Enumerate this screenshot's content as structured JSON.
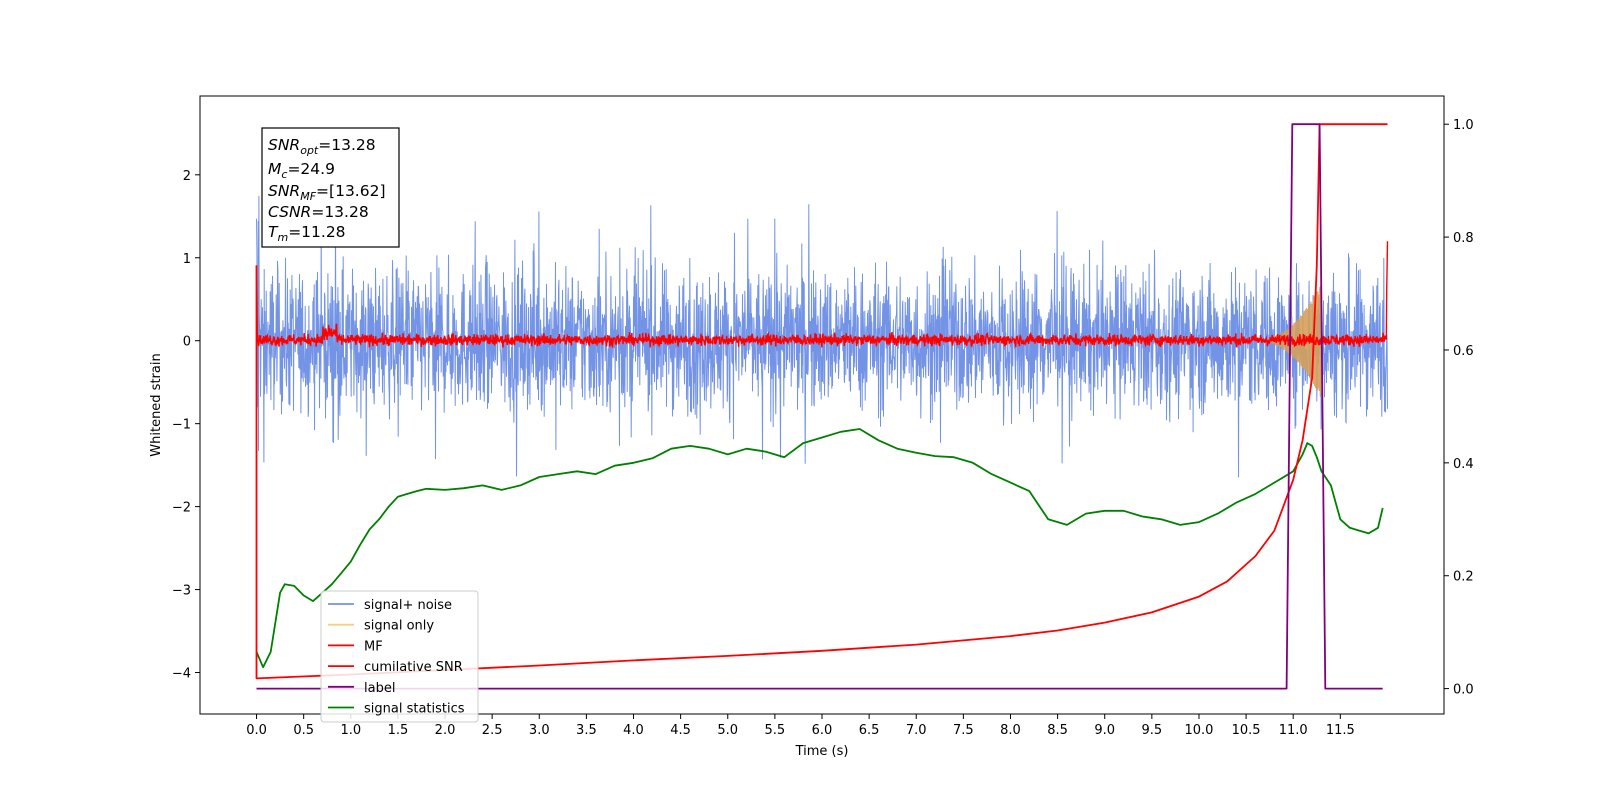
{
  "chart_data": {
    "type": "line",
    "xlabel": "Time (s)",
    "ylabel": "Whitened strain",
    "ylabel_right": "",
    "xlim": [
      -0.6,
      12.6
    ],
    "ylim": [
      -4.5,
      2.95
    ],
    "ylim_right": [
      -0.045,
      1.05
    ],
    "x_ticks": [
      "0.0",
      "0.5",
      "1.0",
      "1.5",
      "2.0",
      "2.5",
      "3.0",
      "3.5",
      "4.0",
      "4.5",
      "5.0",
      "5.5",
      "6.0",
      "6.5",
      "7.0",
      "7.5",
      "8.0",
      "8.5",
      "9.0",
      "9.5",
      "10.0",
      "10.5",
      "11.0",
      "11.5"
    ],
    "y_ticks_left": [
      "−4",
      "−3",
      "−2",
      "−1",
      "0",
      "1",
      "2"
    ],
    "y_ticks_right": [
      "0.0",
      "0.2",
      "0.4",
      "0.6",
      "0.8",
      "1.0"
    ],
    "annotation": {
      "lines": [
        {
          "var": "SNR",
          "sub": "opt",
          "value": "=13.28"
        },
        {
          "var": "M",
          "sub": "c",
          "value": "=24.9"
        },
        {
          "var": "SNR",
          "sub": "MF",
          "value": "=[13.62]"
        },
        {
          "var": "CSNR",
          "sub": "",
          "value": "=13.28"
        },
        {
          "var": "T",
          "sub": "m",
          "value": "=11.28"
        }
      ]
    },
    "legend": {
      "placement": "lower-left",
      "entries": [
        {
          "label": "signal+ noise",
          "color": "#7293e6"
        },
        {
          "label": "signal only",
          "color": "#f7cf82"
        },
        {
          "label": "MF",
          "color": "#ff0000"
        },
        {
          "label": "cumilative SNR",
          "color": "#ff0000"
        },
        {
          "label": "label",
          "color": "#800080"
        },
        {
          "label": "signal statistics",
          "color": "#008000"
        }
      ]
    },
    "series": [
      {
        "name": "signal+ noise",
        "axis": "left",
        "color": "#7293e6",
        "style": "noise",
        "x_range": [
          0,
          12.0
        ],
        "amplitude": 0.42,
        "spikes": 1.7
      },
      {
        "name": "signal only",
        "axis": "left",
        "color": "#d4a05a",
        "style": "chirp",
        "x_range": [
          10.6,
          11.3
        ],
        "peak": 0.7
      },
      {
        "name": "MF",
        "axis": "left",
        "color": "#ff0000",
        "style": "mf",
        "x_range": [
          0,
          12.0
        ],
        "amplitude": 0.07
      },
      {
        "name": "cumilative SNR",
        "axis": "right",
        "color": "#ff0000",
        "x": [
          0.0,
          0.0,
          1.0,
          2.0,
          3.0,
          4.0,
          5.0,
          6.0,
          7.0,
          8.0,
          8.5,
          9.0,
          9.5,
          10.0,
          10.3,
          10.6,
          10.8,
          11.0,
          11.1,
          11.2,
          11.25,
          11.28,
          11.5,
          12.0
        ],
        "y": [
          0.75,
          0.018,
          0.025,
          0.033,
          0.041,
          0.05,
          0.058,
          0.067,
          0.078,
          0.093,
          0.103,
          0.117,
          0.135,
          0.163,
          0.19,
          0.235,
          0.28,
          0.37,
          0.44,
          0.55,
          0.75,
          1.0,
          1.0,
          1.0
        ]
      },
      {
        "name": "label",
        "axis": "right",
        "color": "#800080",
        "x": [
          0.0,
          10.93,
          10.99,
          11.28,
          11.34,
          11.95
        ],
        "y": [
          0.0,
          0.0,
          1.0,
          1.0,
          0.0,
          0.0
        ]
      },
      {
        "name": "signal statistics",
        "axis": "right",
        "color": "#008000",
        "x": [
          0.0,
          0.07,
          0.15,
          0.25,
          0.3,
          0.4,
          0.5,
          0.6,
          0.7,
          0.8,
          0.9,
          1.0,
          1.1,
          1.2,
          1.3,
          1.4,
          1.5,
          1.6,
          1.7,
          1.8,
          2.0,
          2.2,
          2.4,
          2.6,
          2.8,
          3.0,
          3.2,
          3.4,
          3.6,
          3.8,
          4.0,
          4.2,
          4.4,
          4.6,
          4.8,
          5.0,
          5.2,
          5.4,
          5.6,
          5.8,
          6.0,
          6.2,
          6.4,
          6.6,
          6.8,
          7.0,
          7.2,
          7.4,
          7.6,
          7.8,
          8.0,
          8.2,
          8.4,
          8.6,
          8.8,
          9.0,
          9.2,
          9.4,
          9.6,
          9.8,
          10.0,
          10.2,
          10.4,
          10.6,
          10.8,
          11.0,
          11.1,
          11.15,
          11.2,
          11.25,
          11.3,
          11.4,
          11.5,
          11.6,
          11.7,
          11.8,
          11.9,
          11.95
        ],
        "y": [
          0.065,
          0.038,
          0.065,
          0.17,
          0.185,
          0.182,
          0.165,
          0.155,
          0.17,
          0.185,
          0.205,
          0.225,
          0.255,
          0.282,
          0.3,
          0.322,
          0.34,
          0.345,
          0.35,
          0.354,
          0.352,
          0.355,
          0.36,
          0.352,
          0.36,
          0.375,
          0.38,
          0.385,
          0.38,
          0.395,
          0.4,
          0.408,
          0.425,
          0.43,
          0.425,
          0.415,
          0.425,
          0.42,
          0.41,
          0.435,
          0.445,
          0.455,
          0.46,
          0.44,
          0.425,
          0.418,
          0.412,
          0.41,
          0.4,
          0.38,
          0.365,
          0.35,
          0.3,
          0.29,
          0.31,
          0.315,
          0.315,
          0.305,
          0.3,
          0.29,
          0.295,
          0.31,
          0.33,
          0.345,
          0.365,
          0.385,
          0.415,
          0.435,
          0.43,
          0.41,
          0.385,
          0.36,
          0.3,
          0.285,
          0.28,
          0.275,
          0.285,
          0.32
        ]
      }
    ]
  }
}
